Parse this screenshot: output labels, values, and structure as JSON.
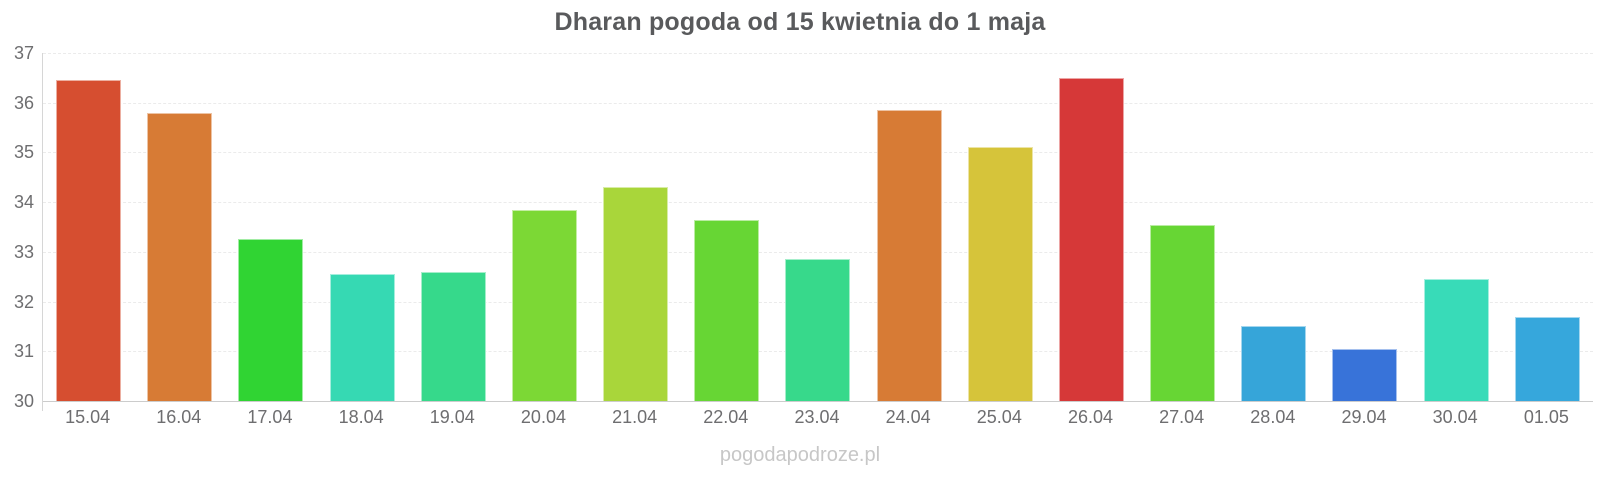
{
  "chart_data": {
    "type": "bar",
    "title": "Dharan pogoda od 15 kwietnia do 1 maja",
    "categories": [
      "15.04",
      "16.04",
      "17.04",
      "18.04",
      "19.04",
      "20.04",
      "21.04",
      "22.04",
      "23.04",
      "24.04",
      "25.04",
      "26.04",
      "27.04",
      "28.04",
      "29.04",
      "30.04",
      "01.05"
    ],
    "values": [
      36.45,
      35.8,
      33.25,
      32.55,
      32.6,
      33.85,
      34.3,
      33.65,
      32.85,
      35.85,
      35.1,
      36.5,
      33.55,
      31.5,
      31.05,
      32.45,
      31.7
    ],
    "bar_colors": [
      "#d64e30",
      "#d77b35",
      "#30d433",
      "#36d9b3",
      "#36d98b",
      "#7cd835",
      "#a9d63a",
      "#67d634",
      "#37d98b",
      "#d77b35",
      "#d6c43a",
      "#d63838",
      "#67d634",
      "#36a5d9",
      "#3873d9",
      "#38dbb8",
      "#36a7dc"
    ],
    "xlabel": "",
    "ylabel": "",
    "ylim": [
      30,
      37
    ],
    "yticks": [
      30,
      31,
      32,
      33,
      34,
      35,
      36,
      37
    ],
    "grid": true,
    "legend": false,
    "legend_position": "none"
  },
  "watermark": "pogodapodroze.pl",
  "colors": {
    "background": "#ffffff",
    "title_text": "#595a5c",
    "axis_text": "#6e6e70",
    "axis_line": "#cccccc",
    "gridline": "#ebebeb",
    "watermark_text": "#c7c7c7"
  }
}
